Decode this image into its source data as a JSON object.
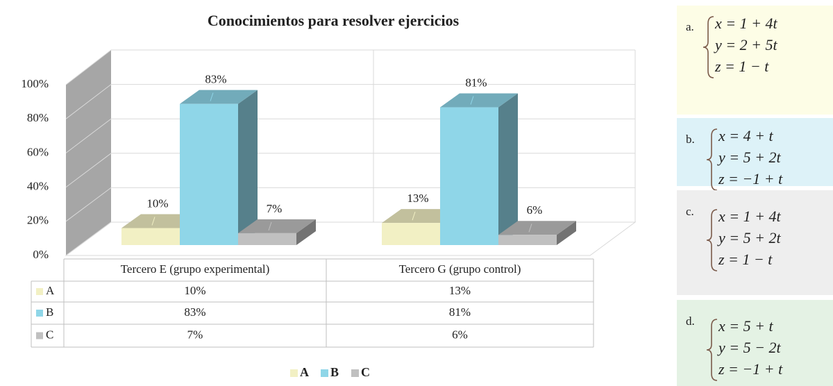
{
  "chart_data": {
    "type": "bar3d",
    "title": "Conocimientos para resolver ejercicios",
    "categories": [
      "Tercero E (grupo experimental)",
      "Tercero G (grupo control)"
    ],
    "series": [
      {
        "name": "A",
        "color": "#f2f0c4",
        "values": [
          10,
          13
        ],
        "value_labels": [
          "10%",
          "13%"
        ]
      },
      {
        "name": "B",
        "color": "#8fd6e8",
        "values": [
          83,
          81
        ],
        "value_labels": [
          "83%",
          "81%"
        ]
      },
      {
        "name": "C",
        "color": "#c0c0c0",
        "values": [
          7,
          6
        ],
        "value_labels": [
          "7%",
          "6%"
        ]
      }
    ],
    "ylim": [
      0,
      100
    ],
    "yticks": [
      {
        "value": 0,
        "label": "0%"
      },
      {
        "value": 20,
        "label": "20%"
      },
      {
        "value": 40,
        "label": "40%"
      },
      {
        "value": 60,
        "label": "60%"
      },
      {
        "value": 80,
        "label": "80%"
      },
      {
        "value": 100,
        "label": "100%"
      }
    ],
    "grid": true,
    "legend": "bottom",
    "data_table": true
  },
  "options": [
    {
      "label": "a.",
      "color": "#fdfde6",
      "equations": [
        "x = 1 + 4t",
        "y = 2 + 5t",
        "z = 1 − t"
      ]
    },
    {
      "label": "b.",
      "color": "#ddf2f8",
      "equations": [
        "x = 4 + t",
        "y = 5 + 2t",
        "z = −1 + t"
      ]
    },
    {
      "label": "c.",
      "color": "#eeeeee",
      "equations": [
        "x = 1 + 4t",
        "y = 5 + 2t",
        "z = 1 − t"
      ]
    },
    {
      "label": "d.",
      "color": "#e4f2e4",
      "equations": [
        "x = 5 + t",
        "y = 5 − 2t",
        "z = −1 + t"
      ]
    }
  ]
}
